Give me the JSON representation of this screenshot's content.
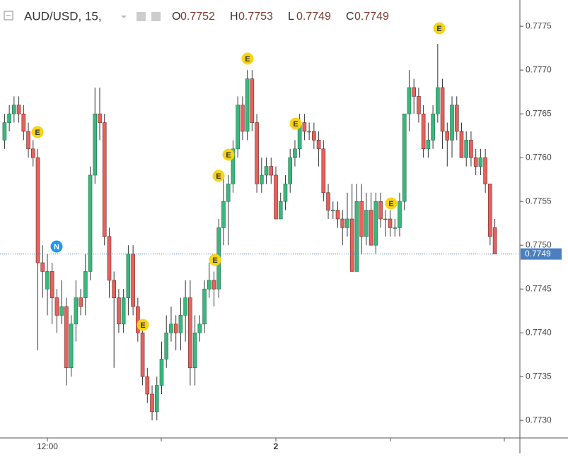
{
  "chart_data": {
    "type": "candlestick",
    "title": "AUD/USD, 15,",
    "ohlc_labels": [
      "O",
      "H",
      "L",
      "C"
    ],
    "up_color": "#3bb77e",
    "down_color": "#e8615c",
    "categories": [
      null,
      null,
      null,
      null,
      null,
      null,
      null,
      null,
      null,
      "12:00",
      null,
      null,
      null,
      null,
      null,
      null,
      null,
      null,
      null,
      null,
      null,
      null,
      null,
      null,
      null,
      null,
      null,
      null,
      null,
      null,
      null,
      null,
      null,
      null,
      null,
      null,
      null,
      null,
      null,
      null,
      null,
      null,
      null,
      null,
      null,
      null,
      null,
      null,
      null,
      null,
      null,
      null,
      null,
      null,
      null,
      null,
      null,
      "2",
      null,
      null,
      null,
      null,
      null,
      null,
      null,
      null,
      null,
      null,
      null,
      null,
      null,
      null,
      null,
      null,
      null,
      null,
      null,
      null,
      null,
      null,
      null,
      null,
      null,
      null,
      null,
      null,
      null,
      null,
      null,
      null,
      null,
      null,
      null,
      null,
      null,
      null,
      null,
      null,
      null,
      null,
      null,
      null,
      null,
      null
    ],
    "open": [
      0.7762,
      0.7764,
      0.7765,
      0.7766,
      0.7765,
      0.7763,
      0.7761,
      0.776,
      0.7748,
      0.7745,
      0.7747,
      0.7744,
      0.7742,
      0.7743,
      0.7736,
      0.7741,
      0.7744,
      0.7744,
      0.7747,
      0.7758,
      0.7765,
      0.7764,
      0.7751,
      0.7746,
      0.7744,
      0.7741,
      0.7744,
      0.7749,
      0.7743,
      0.774,
      0.7735,
      0.7733,
      0.7731,
      0.7734,
      0.7737,
      0.774,
      0.7741,
      0.774,
      0.7742,
      0.7744,
      0.7736,
      0.774,
      0.7741,
      0.7745,
      0.7746,
      0.7745,
      0.7752,
      0.7755,
      0.7757,
      0.7761,
      0.7766,
      0.7763,
      0.7769,
      0.7764,
      0.7757,
      0.7758,
      0.7759,
      0.7758,
      0.7753,
      0.7755,
      0.7757,
      0.776,
      0.7761,
      0.7764,
      0.7763,
      0.7763,
      0.7762,
      0.7761,
      0.7756,
      0.7754,
      0.7754,
      0.7753,
      0.7752,
      0.7753,
      0.7747,
      0.7755,
      0.7751,
      0.7754,
      0.775,
      0.7755,
      0.7753,
      0.7753,
      0.7752,
      0.7752,
      0.7755,
      0.7765,
      0.7768,
      0.7767,
      0.7765,
      0.7761,
      0.7762,
      0.7765,
      0.7768,
      0.7763,
      0.7762,
      0.7766,
      0.7763,
      0.776,
      0.7762,
      0.776,
      0.7759,
      0.776,
      0.7757,
      0.7752
    ],
    "high": [
      0.7765,
      0.7766,
      0.7767,
      0.7767,
      0.7766,
      0.7764,
      0.7762,
      0.7761,
      0.775,
      0.7749,
      0.7748,
      0.7745,
      0.7746,
      0.7744,
      0.7742,
      0.7746,
      0.7745,
      0.7749,
      0.7759,
      0.7768,
      0.7768,
      0.7765,
      0.7752,
      0.7747,
      0.7745,
      0.7745,
      0.775,
      0.775,
      0.7744,
      0.7741,
      0.7736,
      0.7734,
      0.7735,
      0.7739,
      0.7742,
      0.7743,
      0.7742,
      0.7744,
      0.7746,
      0.7746,
      0.7742,
      0.7742,
      0.7746,
      0.7748,
      0.7747,
      0.7753,
      0.7758,
      0.7758,
      0.7762,
      0.7767,
      0.7767,
      0.777,
      0.777,
      0.7765,
      0.776,
      0.776,
      0.776,
      0.7759,
      0.7756,
      0.7758,
      0.7761,
      0.7762,
      0.7765,
      0.7765,
      0.7764,
      0.7764,
      0.7763,
      0.7762,
      0.7757,
      0.7755,
      0.7755,
      0.7754,
      0.7756,
      0.7757,
      0.7757,
      0.7757,
      0.7756,
      0.7756,
      0.7756,
      0.7756,
      0.7754,
      0.7754,
      0.7753,
      0.7756,
      0.7765,
      0.777,
      0.7769,
      0.7768,
      0.7766,
      0.7764,
      0.7766,
      0.7773,
      0.7769,
      0.7764,
      0.7767,
      0.7767,
      0.7764,
      0.7763,
      0.7763,
      0.7761,
      0.7761,
      0.7761,
      0.7757,
      0.7753
    ],
    "low": [
      0.7761,
      0.7763,
      0.7764,
      0.7764,
      0.7762,
      0.776,
      0.7759,
      0.7738,
      0.7744,
      0.7742,
      0.7741,
      0.774,
      0.7741,
      0.7734,
      0.7735,
      0.7739,
      0.7742,
      0.7742,
      0.7746,
      0.7757,
      0.7762,
      0.775,
      0.7744,
      0.7736,
      0.774,
      0.774,
      0.7742,
      0.7742,
      0.7739,
      0.7734,
      0.7732,
      0.773,
      0.773,
      0.7733,
      0.7736,
      0.7739,
      0.7738,
      0.7738,
      0.7739,
      0.7734,
      0.7734,
      0.7739,
      0.774,
      0.7744,
      0.7743,
      0.7744,
      0.775,
      0.775,
      0.7756,
      0.776,
      0.7762,
      0.7762,
      0.7763,
      0.7756,
      0.7756,
      0.7757,
      0.7757,
      0.7753,
      0.7753,
      0.7754,
      0.7756,
      0.7759,
      0.776,
      0.7762,
      0.7762,
      0.7761,
      0.7759,
      0.7755,
      0.7753,
      0.7753,
      0.7752,
      0.775,
      0.7751,
      0.7747,
      0.7747,
      0.7749,
      0.775,
      0.775,
      0.7749,
      0.7752,
      0.7751,
      0.7751,
      0.7751,
      0.7751,
      0.7754,
      0.7763,
      0.7765,
      0.7764,
      0.776,
      0.776,
      0.7761,
      0.7764,
      0.7761,
      0.7759,
      0.776,
      0.7762,
      0.776,
      0.7759,
      0.7759,
      0.7758,
      0.7758,
      0.7756,
      0.775,
      0.7749
    ],
    "close": [
      0.7764,
      0.7765,
      0.7766,
      0.7765,
      0.7763,
      0.7761,
      0.776,
      0.7748,
      0.7747,
      0.7747,
      0.7744,
      0.7742,
      0.7743,
      0.7736,
      0.7741,
      0.7744,
      0.7743,
      0.7747,
      0.7758,
      0.7765,
      0.7764,
      0.7751,
      0.7746,
      0.7744,
      0.7741,
      0.7744,
      0.7749,
      0.7743,
      0.774,
      0.7735,
      0.7733,
      0.7731,
      0.7734,
      0.7737,
      0.774,
      0.7741,
      0.774,
      0.7742,
      0.7744,
      0.7736,
      0.774,
      0.7741,
      0.7745,
      0.7746,
      0.7745,
      0.7752,
      0.7755,
      0.7757,
      0.7761,
      0.7766,
      0.7763,
      0.7769,
      0.7764,
      0.7757,
      0.7758,
      0.7759,
      0.7758,
      0.7753,
      0.7755,
      0.7757,
      0.776,
      0.7761,
      0.7764,
      0.7763,
      0.7763,
      0.7762,
      0.7761,
      0.7756,
      0.7754,
      0.7754,
      0.7753,
      0.7752,
      0.7753,
      0.7747,
      0.7755,
      0.7751,
      0.7754,
      0.775,
      0.7755,
      0.7753,
      0.7753,
      0.7752,
      0.7752,
      0.7755,
      0.7765,
      0.7768,
      0.7767,
      0.7765,
      0.7761,
      0.7762,
      0.7765,
      0.7768,
      0.7763,
      0.7762,
      0.7766,
      0.7763,
      0.776,
      0.7762,
      0.776,
      0.7759,
      0.776,
      0.7757,
      0.7751,
      0.7749
    ],
    "ylim": [
      0.7728,
      0.7778
    ],
    "yticks": [
      {
        "value": 0.773,
        "label": "0.7730"
      },
      0.7735,
      {
        "value": 0.774,
        "label": "0.7740"
      },
      0.7745,
      {
        "value": 0.775,
        "label": "0.7750"
      },
      0.7755,
      {
        "value": 0.776,
        "label": "0.7760"
      },
      0.7765,
      {
        "value": 0.777,
        "label": "0.7770"
      },
      0.7775
    ],
    "grid": false,
    "events": [
      {
        "label": "E",
        "color": "#f7d417"
      },
      {
        "label": "N",
        "color": "#2196f3"
      },
      {
        "label": "E",
        "color": "#f7d417"
      },
      {
        "label": "E",
        "color": "#f7d417"
      },
      {
        "label": "E",
        "color": "#f7d417"
      },
      {
        "label": "E",
        "color": "#f7d417"
      },
      {
        "label": "E",
        "color": "#f7d417"
      },
      {
        "label": "E",
        "color": "#f7d417"
      },
      {
        "label": "E",
        "color": "#f7d417"
      },
      {
        "label": "E",
        "color": "#f7d417"
      }
    ]
  }
}
